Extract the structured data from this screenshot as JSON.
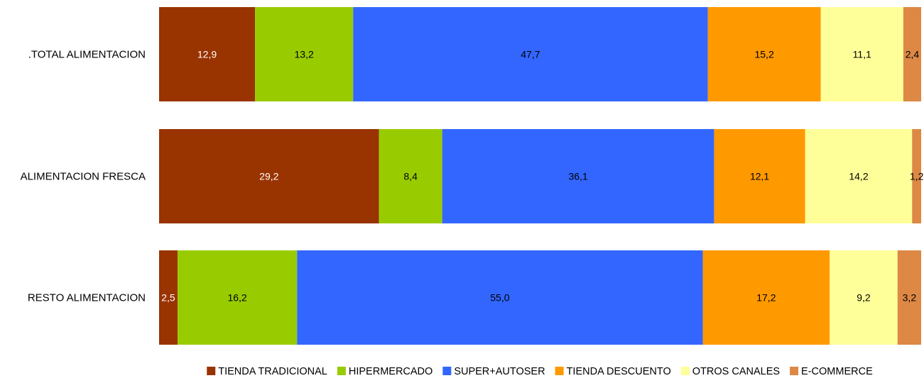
{
  "chart_data": {
    "type": "bar",
    "orientation": "horizontal",
    "stacked": true,
    "categories": [
      ".TOTAL ALIMENTACION",
      "ALIMENTACION FRESCA",
      "RESTO ALIMENTACION"
    ],
    "series": [
      {
        "name": "TIENDA TRADICIONAL",
        "color": "#993300",
        "label_color": "#ffffff",
        "values": [
          12.9,
          29.2,
          2.5
        ],
        "labels": [
          "12,9",
          "29,2",
          "2,5"
        ]
      },
      {
        "name": "HIPERMERCADO",
        "color": "#99cc00",
        "label_color": "#000000",
        "values": [
          13.2,
          8.4,
          16.2
        ],
        "labels": [
          "13,2",
          "8,4",
          "16,2"
        ]
      },
      {
        "name": "SUPER+AUTOSER",
        "color": "#3366ff",
        "label_color": "#000000",
        "values": [
          47.7,
          36.1,
          55.0
        ],
        "labels": [
          "47,7",
          "36,1",
          "55,0"
        ]
      },
      {
        "name": "TIENDA DESCUENTO",
        "color": "#ff9900",
        "label_color": "#000000",
        "values": [
          15.2,
          12.1,
          17.2
        ],
        "labels": [
          "15,2",
          "12,1",
          "17,2"
        ]
      },
      {
        "name": "OTROS CANALES",
        "color": "#ffff99",
        "label_color": "#000000",
        "values": [
          11.1,
          14.2,
          9.2
        ],
        "labels": [
          "11,1",
          "14,2",
          "9,2"
        ]
      },
      {
        "name": "E-COMMERCE",
        "color": "#dd8844",
        "label_color": "#000000",
        "values": [
          2.4,
          1.2,
          3.2
        ],
        "labels": [
          "2,4",
          "1,2",
          "3,2"
        ]
      }
    ],
    "xlim": [
      0,
      100
    ],
    "grid": false,
    "legend_position": "bottom"
  }
}
